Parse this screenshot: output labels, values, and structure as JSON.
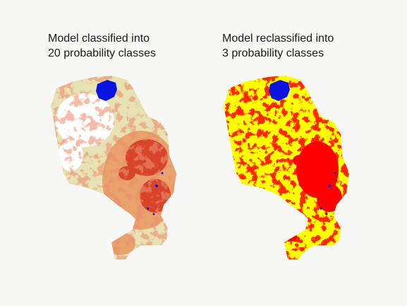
{
  "panels": [
    {
      "caption_line1": "Model classified into",
      "caption_line2": "20 probability classes",
      "palette": {
        "low": "#e7e2b4",
        "mid": "#e9a26c",
        "high": "#d7442a",
        "water": "#0a14e0",
        "blank": "#ffffff"
      }
    },
    {
      "caption_line1": "Model reclassified into",
      "caption_line2": "3 probability classes",
      "palette": {
        "low": "#ffff00",
        "mid": "#f06a14",
        "high": "#ff0000",
        "water": "#0a14e0"
      }
    }
  ]
}
